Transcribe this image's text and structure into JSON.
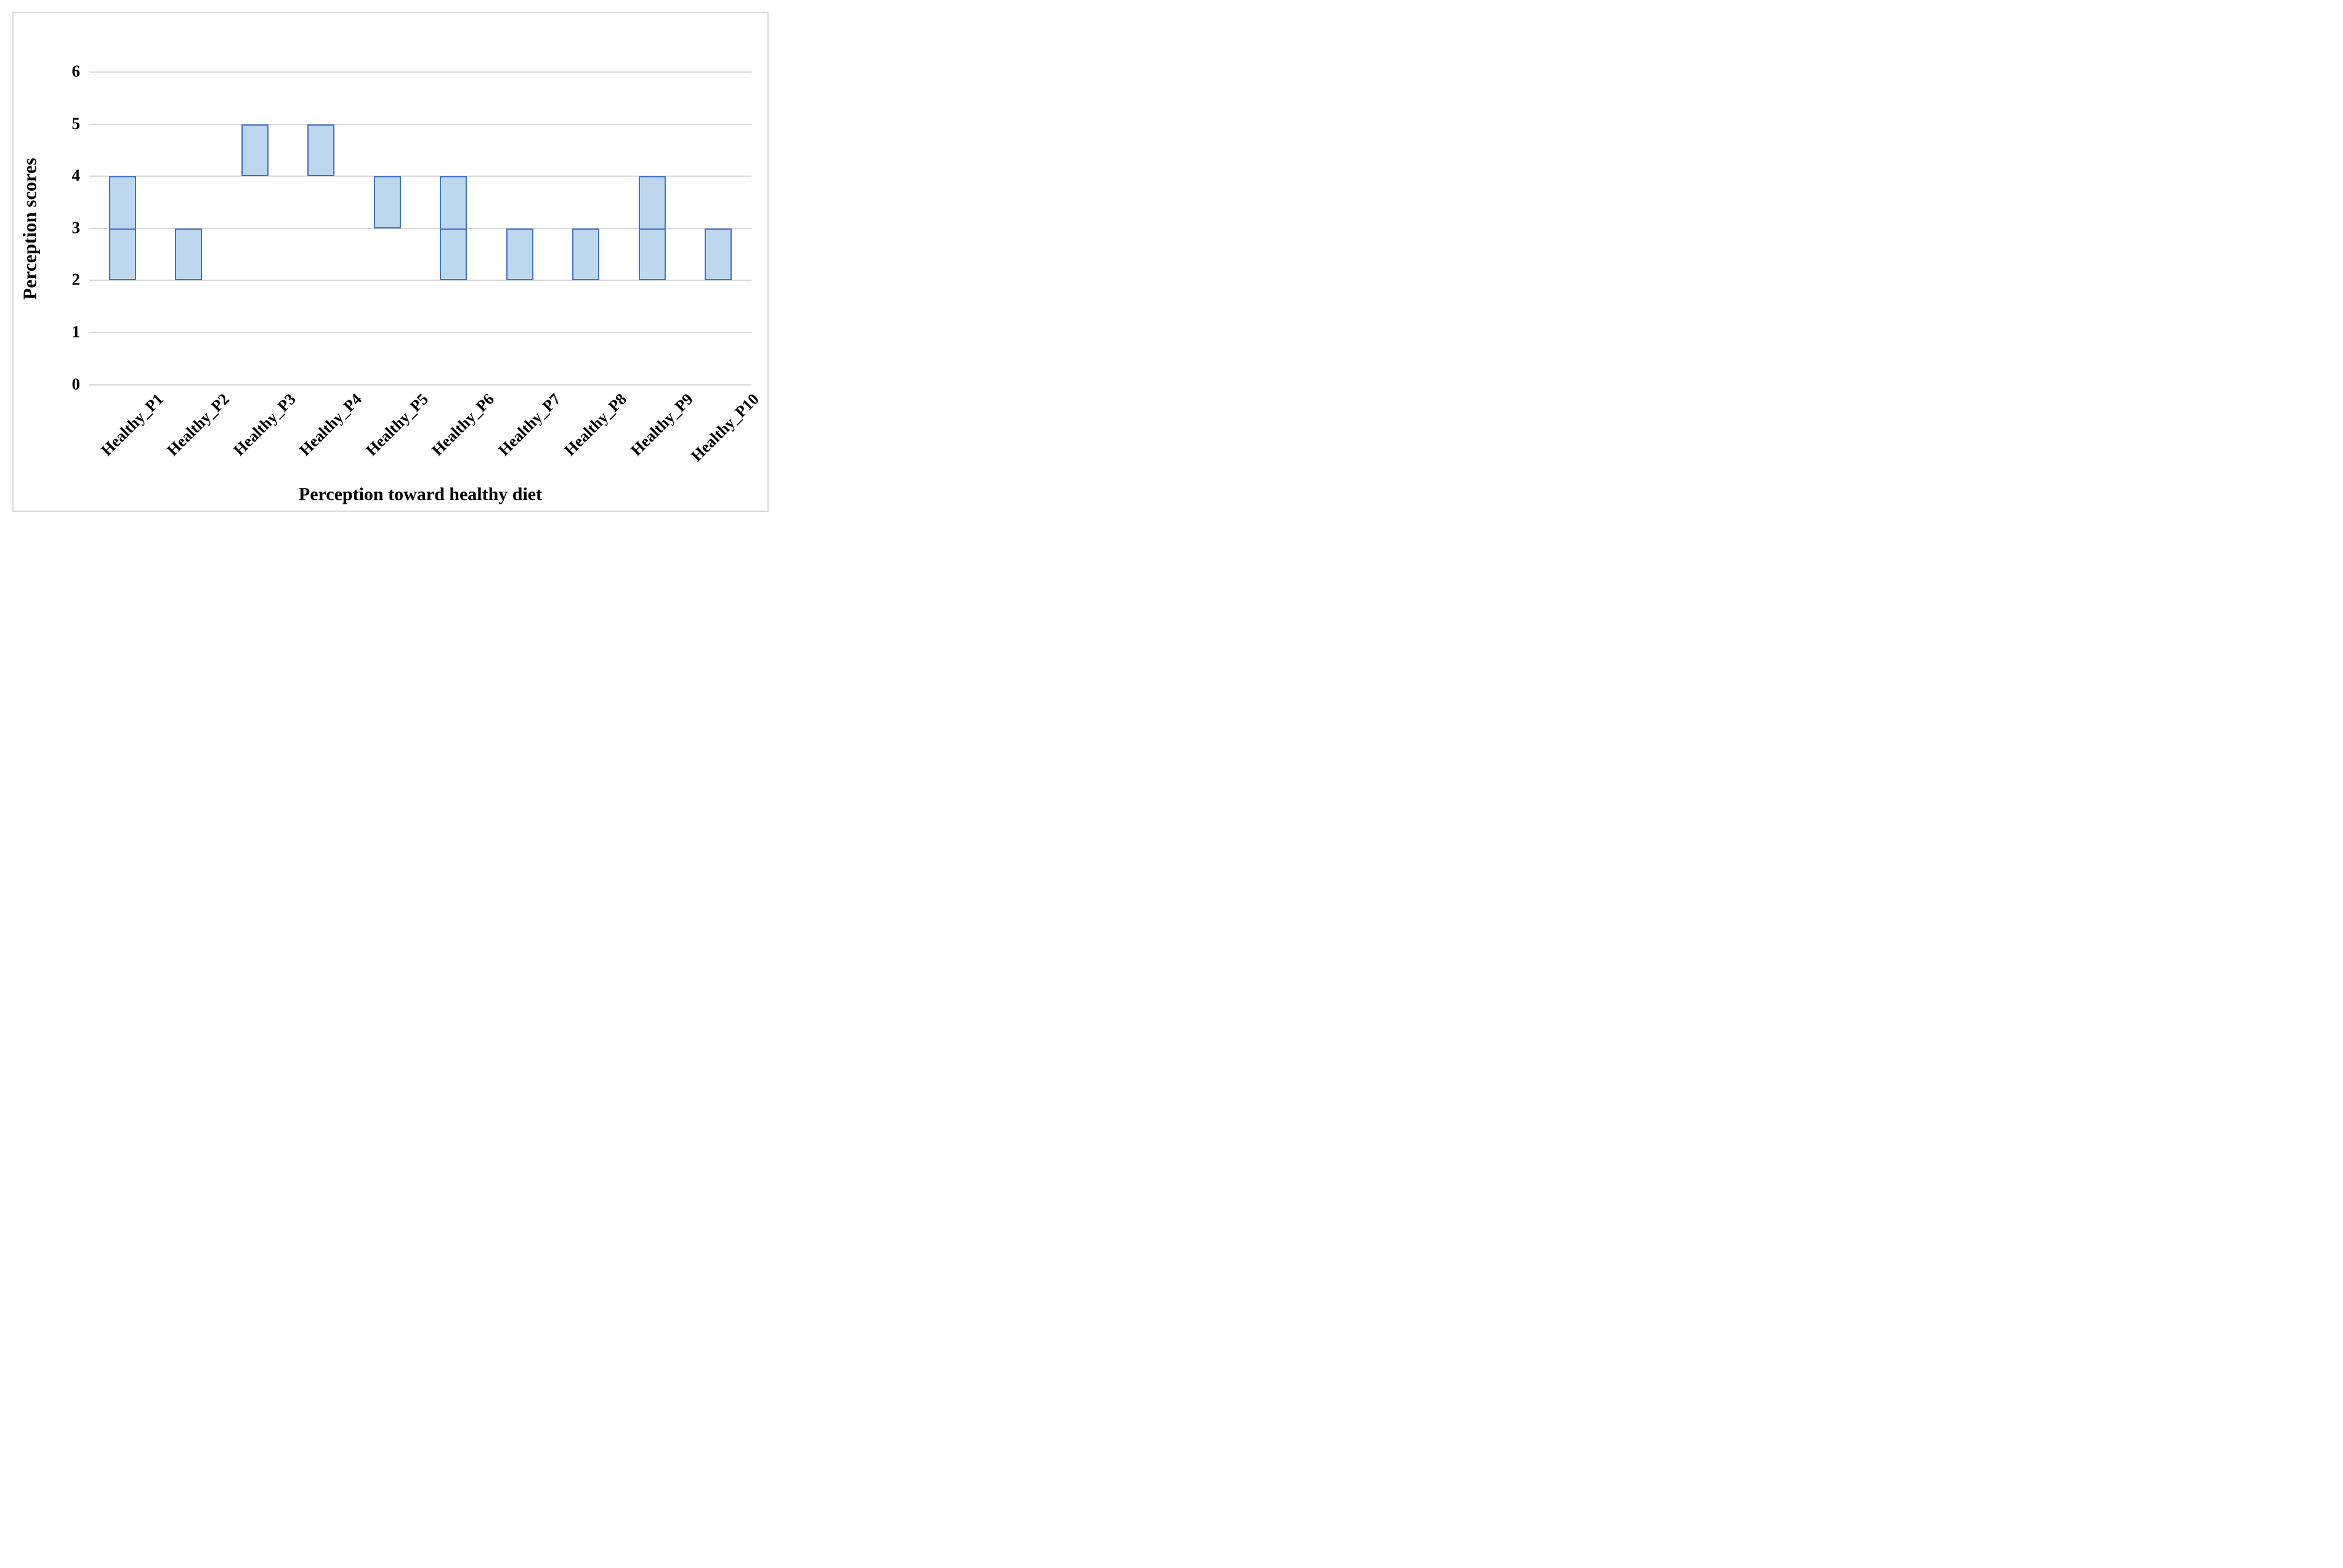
{
  "chart_data": {
    "type": "bar",
    "subtype": "floating-range-columns",
    "title": "",
    "xlabel": "Perception toward healthy diet",
    "ylabel": "Perception scores",
    "ylim": [
      0,
      6
    ],
    "yticks": [
      0,
      1,
      2,
      3,
      4,
      5,
      6
    ],
    "grid": true,
    "legend": false,
    "categories": [
      "Healthy_P1",
      "Healthy_P2",
      "Healthy_P3",
      "Healthy_P4",
      "Healthy_P5",
      "Healthy_P6",
      "Healthy_P7",
      "Healthy_P8",
      "Healthy_P9",
      "Healthy_P10"
    ],
    "bars": [
      {
        "category": "Healthy_P1",
        "low": 2,
        "high": 4,
        "divider": 3
      },
      {
        "category": "Healthy_P2",
        "low": 2,
        "high": 3
      },
      {
        "category": "Healthy_P3",
        "low": 4,
        "high": 5
      },
      {
        "category": "Healthy_P4",
        "low": 4,
        "high": 5
      },
      {
        "category": "Healthy_P5",
        "low": 3,
        "high": 4
      },
      {
        "category": "Healthy_P6",
        "low": 2,
        "high": 4,
        "divider": 3
      },
      {
        "category": "Healthy_P7",
        "low": 2,
        "high": 3
      },
      {
        "category": "Healthy_P8",
        "low": 2,
        "high": 3
      },
      {
        "category": "Healthy_P9",
        "low": 2,
        "high": 4,
        "divider": 3
      },
      {
        "category": "Healthy_P10",
        "low": 2,
        "high": 3
      }
    ],
    "colors": {
      "bar_fill": "#BDD7EE",
      "bar_border": "#4472C4",
      "gridline": "#D9D9D9",
      "frame_border": "#D9D9D9",
      "text": "#000000"
    }
  }
}
